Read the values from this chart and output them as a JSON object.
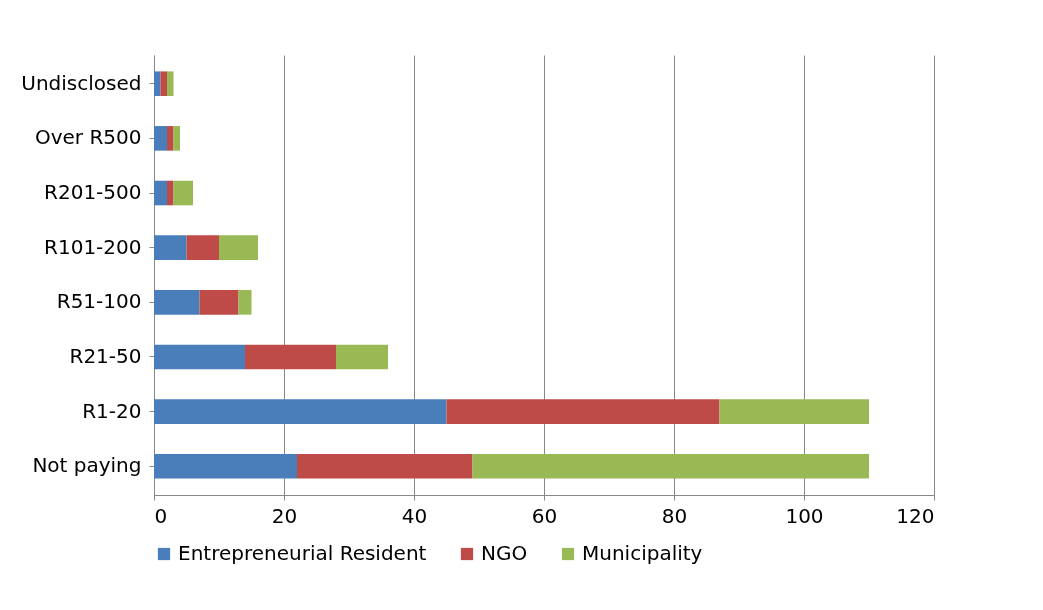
{
  "chart_data": {
    "type": "bar",
    "orientation": "horizontal",
    "stacked": true,
    "categories": [
      "Undisclosed",
      "Over R500",
      "R201-500",
      "R101-200",
      "R51-100",
      "R21-50",
      "R1-20",
      "Not paying"
    ],
    "series": [
      {
        "name": "Entrepreneurial Resident",
        "color": "#4a7ebb",
        "values": [
          1,
          2,
          2,
          5,
          7,
          14,
          45,
          22
        ]
      },
      {
        "name": "NGO",
        "color": "#be4b48",
        "values": [
          1,
          1,
          1,
          5,
          6,
          14,
          42,
          27
        ]
      },
      {
        "name": "Municipality",
        "color": "#98b954",
        "values": [
          1,
          1,
          3,
          6,
          2,
          8,
          23,
          61
        ]
      }
    ],
    "xlim": [
      0,
      120
    ],
    "xticks": [
      0,
      20,
      40,
      60,
      80,
      100,
      120
    ],
    "grid": "x",
    "legend": "bottom"
  }
}
